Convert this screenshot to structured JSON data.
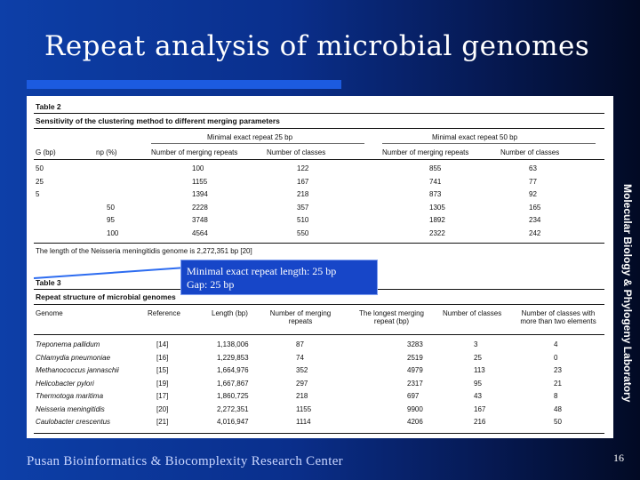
{
  "slide": {
    "title": "Repeat analysis of microbial genomes",
    "side_label": "Molecular Biology & Phylogeny Laboratory",
    "footer": "Pusan Bioinformatics & Biocomplexity Research Center",
    "page_number": "16"
  },
  "callout": {
    "line1": "Minimal exact repeat length: 25 bp",
    "line2": "Gap: 25 bp"
  },
  "table2": {
    "label": "Table 2",
    "caption": "Sensitivity of the clustering method to different merging parameters",
    "group_a": "Minimal exact repeat 25 bp",
    "group_b": "Minimal exact repeat 50 bp",
    "headers": [
      "G (bp)",
      "np (%)",
      "Number of merging repeats",
      "Number of classes",
      "Number of merging repeats",
      "Number of classes"
    ],
    "rows": [
      [
        "50",
        "",
        "100",
        "122",
        "855",
        "63"
      ],
      [
        "25",
        "",
        "1155",
        "167",
        "741",
        "77"
      ],
      [
        "5",
        "",
        "1394",
        "218",
        "873",
        "92"
      ],
      [
        "",
        "50",
        "2228",
        "357",
        "1305",
        "165"
      ],
      [
        "",
        "95",
        "3748",
        "510",
        "1892",
        "234"
      ],
      [
        "",
        "100",
        "4564",
        "550",
        "2322",
        "242"
      ]
    ],
    "note": "The length of the Neisseria meningitidis genome is 2,272,351 bp [20]"
  },
  "table3": {
    "label": "Table 3",
    "caption": "Repeat structure of microbial genomes",
    "headers": [
      "Genome",
      "Reference",
      "Length (bp)",
      "Number of merging repeats",
      "The longest merging repeat (bp)",
      "Number of classes",
      "Number of classes with more than two elements"
    ],
    "rows": [
      [
        "Treponema pallidum",
        "[14]",
        "1,138,006",
        "87",
        "3283",
        "3",
        "4"
      ],
      [
        "Chlamydia pneumoniae",
        "[16]",
        "1,229,853",
        "74",
        "2519",
        "25",
        "0"
      ],
      [
        "Methanococcus jannaschii",
        "[15]",
        "1,664,976",
        "352",
        "4979",
        "113",
        "23"
      ],
      [
        "Helicobacter pylori",
        "[19]",
        "1,667,867",
        "297",
        "2317",
        "95",
        "21"
      ],
      [
        "Thermotoga maritima",
        "[17]",
        "1,860,725",
        "218",
        "697",
        "43",
        "8"
      ],
      [
        "Neisseria meningitidis",
        "[20]",
        "2,272,351",
        "1155",
        "9900",
        "167",
        "48"
      ],
      [
        "Caulobacter crescentus",
        "[21]",
        "4,016,947",
        "1114",
        "4206",
        "216",
        "50"
      ]
    ]
  }
}
